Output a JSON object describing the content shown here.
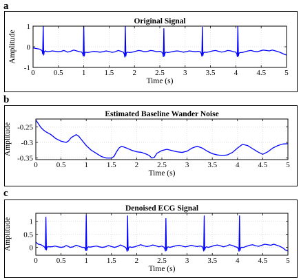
{
  "figure": {
    "panels": [
      {
        "letter": "a"
      },
      {
        "letter": "b"
      },
      {
        "letter": "c"
      }
    ]
  },
  "chart_data": [
    {
      "type": "line",
      "title": "Original Signal",
      "xlabel": "Time (s)",
      "ylabel": "Amplitude",
      "xlim": [
        0,
        5
      ],
      "ylim": [
        -1,
        1
      ],
      "xticks": [
        "0",
        "0.5",
        "1",
        "1.5",
        "2",
        "2.5",
        "3",
        "3.5",
        "4",
        "4.5",
        "5"
      ],
      "yticks": [
        "-1",
        "0",
        "1"
      ],
      "grid": true,
      "line_color": "#0000ff",
      "series": [
        {
          "x": [
            0,
            0.05,
            0.1,
            0.14,
            0.18,
            0.19,
            0.2,
            0.21,
            0.22,
            0.24,
            0.28,
            0.34,
            0.38,
            0.44,
            0.5,
            0.56,
            0.6,
            0.64,
            0.68,
            0.74,
            0.8,
            0.86,
            0.92,
            0.96,
            0.98,
            0.99,
            1.0,
            1.01,
            1.02,
            1.04,
            1.08,
            1.14,
            1.2,
            1.26,
            1.32,
            1.38,
            1.44,
            1.5,
            1.56,
            1.62,
            1.68,
            1.74,
            1.78,
            1.8,
            1.81,
            1.82,
            1.83,
            1.84,
            1.86,
            1.9,
            1.96,
            2.02,
            2.08,
            2.14,
            2.2,
            2.26,
            2.32,
            2.38,
            2.44,
            2.5,
            2.54,
            2.56,
            2.57,
            2.58,
            2.59,
            2.6,
            2.62,
            2.66,
            2.72,
            2.78,
            2.84,
            2.9,
            2.96,
            3.02,
            3.08,
            3.14,
            3.2,
            3.26,
            3.3,
            3.32,
            3.33,
            3.34,
            3.35,
            3.36,
            3.38,
            3.42,
            3.48,
            3.54,
            3.6,
            3.66,
            3.72,
            3.78,
            3.84,
            3.9,
            3.96,
            4.0,
            4.02,
            4.03,
            4.04,
            4.05,
            4.06,
            4.08,
            4.12,
            4.18,
            4.24,
            4.3,
            4.36,
            4.42,
            4.48,
            4.54,
            4.6,
            4.66,
            4.72,
            4.78,
            4.84,
            4.9,
            4.95,
            5.0
          ],
          "y": [
            -0.05,
            -0.08,
            -0.1,
            -0.12,
            -0.2,
            -0.35,
            1.0,
            -0.4,
            -0.25,
            -0.2,
            -0.24,
            -0.22,
            -0.2,
            -0.22,
            -0.24,
            -0.22,
            -0.18,
            -0.21,
            -0.26,
            -0.22,
            -0.16,
            -0.2,
            -0.24,
            -0.26,
            -0.34,
            -0.45,
            1.0,
            -0.45,
            -0.3,
            -0.26,
            -0.28,
            -0.25,
            -0.22,
            -0.24,
            -0.26,
            -0.24,
            -0.2,
            -0.23,
            -0.27,
            -0.24,
            -0.18,
            -0.22,
            -0.26,
            -0.36,
            -0.5,
            0.98,
            -0.45,
            -0.3,
            -0.26,
            -0.28,
            -0.26,
            -0.22,
            -0.18,
            -0.2,
            -0.24,
            -0.22,
            -0.18,
            -0.2,
            -0.24,
            -0.22,
            -0.26,
            -0.34,
            -0.48,
            0.88,
            -0.45,
            -0.32,
            -0.26,
            -0.28,
            -0.25,
            -0.22,
            -0.2,
            -0.22,
            -0.26,
            -0.24,
            -0.2,
            -0.22,
            -0.24,
            -0.22,
            -0.24,
            -0.34,
            -0.46,
            0.95,
            -0.42,
            -0.3,
            -0.26,
            -0.27,
            -0.24,
            -0.2,
            -0.18,
            -0.22,
            -0.26,
            -0.23,
            -0.18,
            -0.2,
            -0.24,
            -0.26,
            -0.34,
            -0.48,
            0.98,
            -0.45,
            -0.32,
            -0.28,
            -0.28,
            -0.24,
            -0.2,
            -0.18,
            -0.22,
            -0.24,
            -0.2,
            -0.16,
            -0.18,
            -0.2,
            -0.16,
            -0.2,
            -0.24,
            -0.3,
            -0.36,
            -0.4
          ]
        }
      ]
    },
    {
      "type": "line",
      "title": "Estimated Baseline Wander Noise",
      "xlabel": "Time (s)",
      "ylabel": "Amplitude",
      "xlim": [
        0,
        5
      ],
      "ylim": [
        -0.355,
        -0.225
      ],
      "xticks": [
        "0",
        "0.5",
        "1",
        "1.5",
        "2",
        "2.5",
        "3",
        "3.5",
        "4",
        "4.5",
        "5"
      ],
      "yticks": [
        "-0.25",
        "-0.3",
        "-0.35"
      ],
      "grid": true,
      "line_color": "#0000ff",
      "series": [
        {
          "x": [
            0,
            0.05,
            0.1,
            0.15,
            0.2,
            0.3,
            0.4,
            0.5,
            0.6,
            0.65,
            0.7,
            0.8,
            0.85,
            0.9,
            0.95,
            1.0,
            1.1,
            1.2,
            1.3,
            1.4,
            1.5,
            1.55,
            1.6,
            1.65,
            1.7,
            1.8,
            1.9,
            2.0,
            2.1,
            2.2,
            2.25,
            2.3,
            2.35,
            2.4,
            2.5,
            2.6,
            2.7,
            2.8,
            2.9,
            3.0,
            3.1,
            3.2,
            3.3,
            3.4,
            3.5,
            3.6,
            3.7,
            3.8,
            3.9,
            4.0,
            4.1,
            4.2,
            4.3,
            4.4,
            4.5,
            4.6,
            4.7,
            4.8,
            4.9,
            5.0
          ],
          "y": [
            -0.228,
            -0.24,
            -0.252,
            -0.26,
            -0.266,
            -0.275,
            -0.288,
            -0.296,
            -0.3,
            -0.295,
            -0.285,
            -0.275,
            -0.28,
            -0.29,
            -0.3,
            -0.31,
            -0.325,
            -0.335,
            -0.345,
            -0.35,
            -0.35,
            -0.345,
            -0.33,
            -0.318,
            -0.312,
            -0.318,
            -0.325,
            -0.33,
            -0.332,
            -0.338,
            -0.342,
            -0.35,
            -0.348,
            -0.335,
            -0.326,
            -0.322,
            -0.326,
            -0.33,
            -0.332,
            -0.328,
            -0.318,
            -0.312,
            -0.318,
            -0.328,
            -0.336,
            -0.34,
            -0.342,
            -0.34,
            -0.332,
            -0.318,
            -0.306,
            -0.31,
            -0.32,
            -0.33,
            -0.338,
            -0.33,
            -0.318,
            -0.31,
            -0.305,
            -0.304
          ]
        }
      ]
    },
    {
      "type": "line",
      "title": "Denoised ECG Signal",
      "xlabel": "Time (s)",
      "ylabel": "Amplitude",
      "xlim": [
        0,
        5
      ],
      "ylim": [
        -0.3,
        1.3
      ],
      "xticks": [
        "0",
        "0.5",
        "1",
        "1.5",
        "2",
        "2.5",
        "3",
        "3.5",
        "4",
        "4.5",
        "5"
      ],
      "yticks": [
        "0",
        "0.5",
        "1"
      ],
      "grid": true,
      "line_color": "#0000ff",
      "series": [
        {
          "x": [
            0,
            0.05,
            0.1,
            0.14,
            0.18,
            0.19,
            0.2,
            0.21,
            0.22,
            0.24,
            0.28,
            0.34,
            0.38,
            0.44,
            0.5,
            0.56,
            0.6,
            0.64,
            0.68,
            0.74,
            0.8,
            0.86,
            0.92,
            0.96,
            0.98,
            0.99,
            1.0,
            1.01,
            1.02,
            1.04,
            1.08,
            1.14,
            1.2,
            1.26,
            1.32,
            1.38,
            1.44,
            1.5,
            1.56,
            1.62,
            1.68,
            1.74,
            1.78,
            1.8,
            1.81,
            1.82,
            1.83,
            1.84,
            1.86,
            1.9,
            1.96,
            2.02,
            2.08,
            2.14,
            2.2,
            2.26,
            2.32,
            2.38,
            2.44,
            2.5,
            2.54,
            2.56,
            2.57,
            2.58,
            2.59,
            2.6,
            2.62,
            2.66,
            2.72,
            2.78,
            2.84,
            2.9,
            2.96,
            3.02,
            3.08,
            3.14,
            3.2,
            3.26,
            3.3,
            3.32,
            3.33,
            3.34,
            3.35,
            3.36,
            3.38,
            3.42,
            3.48,
            3.54,
            3.6,
            3.66,
            3.72,
            3.78,
            3.84,
            3.9,
            3.96,
            4.0,
            4.02,
            4.03,
            4.04,
            4.05,
            4.06,
            4.08,
            4.12,
            4.18,
            4.24,
            4.3,
            4.36,
            4.42,
            4.48,
            4.54,
            4.6,
            4.66,
            4.72,
            4.78,
            4.84,
            4.9,
            4.95,
            5.0
          ],
          "y": [
            0.2,
            0.12,
            0.1,
            0.06,
            0.0,
            -0.08,
            1.15,
            -0.1,
            0.0,
            0.03,
            0.02,
            0.03,
            0.05,
            0.02,
            0.0,
            0.02,
            0.07,
            0.04,
            0.0,
            0.02,
            0.08,
            0.04,
            0.0,
            0.0,
            -0.05,
            -0.12,
            1.22,
            -0.12,
            -0.02,
            0.02,
            0.01,
            0.03,
            0.05,
            0.02,
            0.0,
            0.02,
            0.07,
            0.03,
            0.0,
            0.03,
            0.09,
            0.04,
            0.0,
            -0.06,
            -0.15,
            1.2,
            -0.12,
            -0.02,
            0.02,
            0.0,
            0.02,
            0.06,
            0.1,
            0.06,
            0.03,
            0.05,
            0.09,
            0.06,
            0.02,
            0.05,
            0.01,
            -0.06,
            -0.14,
            1.1,
            -0.12,
            -0.03,
            0.02,
            0.0,
            0.03,
            0.06,
            0.08,
            0.05,
            0.02,
            0.04,
            0.08,
            0.05,
            0.03,
            0.05,
            0.03,
            -0.05,
            -0.14,
            1.2,
            -0.1,
            -0.02,
            0.02,
            0.0,
            0.03,
            0.07,
            0.09,
            0.06,
            0.02,
            0.05,
            0.1,
            0.07,
            0.02,
            0.0,
            -0.06,
            -0.15,
            1.2,
            -0.12,
            -0.03,
            0.0,
            0.0,
            0.04,
            0.08,
            0.1,
            0.06,
            0.04,
            0.08,
            0.12,
            0.1,
            0.08,
            0.12,
            0.08,
            0.04,
            -0.02,
            -0.1,
            -0.14
          ]
        }
      ]
    }
  ]
}
